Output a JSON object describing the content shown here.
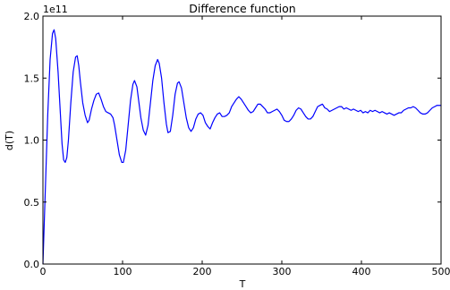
{
  "chart_data": {
    "type": "line",
    "title": "Difference function",
    "xlabel": "T",
    "ylabel": "d(T)",
    "y_scale_label": "1e11",
    "xlim": [
      0,
      500
    ],
    "ylim": [
      0.0,
      2.0
    ],
    "x_ticks": [
      "0",
      "100",
      "200",
      "300",
      "400",
      "500"
    ],
    "y_ticks": [
      "0.0",
      "0.5",
      "1.0",
      "1.5",
      "2.0"
    ],
    "grid": false,
    "legend": "none",
    "series": [
      {
        "color": "#0000ff",
        "points": [
          [
            0,
            0.0
          ],
          [
            3,
            0.6
          ],
          [
            6,
            1.2
          ],
          [
            9,
            1.65
          ],
          [
            12,
            1.86
          ],
          [
            14,
            1.89
          ],
          [
            16,
            1.82
          ],
          [
            19,
            1.55
          ],
          [
            22,
            1.2
          ],
          [
            24,
            0.97
          ],
          [
            26,
            0.84
          ],
          [
            28,
            0.82
          ],
          [
            30,
            0.86
          ],
          [
            32,
            1.0
          ],
          [
            35,
            1.3
          ],
          [
            38,
            1.55
          ],
          [
            41,
            1.67
          ],
          [
            43,
            1.68
          ],
          [
            45,
            1.6
          ],
          [
            47,
            1.47
          ],
          [
            50,
            1.3
          ],
          [
            53,
            1.2
          ],
          [
            56,
            1.14
          ],
          [
            58,
            1.16
          ],
          [
            61,
            1.25
          ],
          [
            64,
            1.32
          ],
          [
            67,
            1.37
          ],
          [
            70,
            1.38
          ],
          [
            73,
            1.33
          ],
          [
            76,
            1.27
          ],
          [
            79,
            1.23
          ],
          [
            82,
            1.22
          ],
          [
            85,
            1.21
          ],
          [
            88,
            1.18
          ],
          [
            90,
            1.12
          ],
          [
            93,
            1.0
          ],
          [
            96,
            0.88
          ],
          [
            99,
            0.82
          ],
          [
            101,
            0.82
          ],
          [
            104,
            0.92
          ],
          [
            107,
            1.12
          ],
          [
            110,
            1.32
          ],
          [
            113,
            1.45
          ],
          [
            115,
            1.48
          ],
          [
            118,
            1.43
          ],
          [
            120,
            1.33
          ],
          [
            123,
            1.18
          ],
          [
            126,
            1.08
          ],
          [
            129,
            1.04
          ],
          [
            132,
            1.12
          ],
          [
            135,
            1.3
          ],
          [
            138,
            1.48
          ],
          [
            141,
            1.6
          ],
          [
            144,
            1.65
          ],
          [
            146,
            1.62
          ],
          [
            149,
            1.5
          ],
          [
            152,
            1.3
          ],
          [
            155,
            1.13
          ],
          [
            157,
            1.06
          ],
          [
            160,
            1.07
          ],
          [
            163,
            1.2
          ],
          [
            166,
            1.37
          ],
          [
            169,
            1.46
          ],
          [
            171,
            1.47
          ],
          [
            174,
            1.42
          ],
          [
            177,
            1.3
          ],
          [
            180,
            1.18
          ],
          [
            183,
            1.1
          ],
          [
            186,
            1.07
          ],
          [
            189,
            1.1
          ],
          [
            192,
            1.17
          ],
          [
            195,
            1.21
          ],
          [
            198,
            1.22
          ],
          [
            201,
            1.2
          ],
          [
            204,
            1.14
          ],
          [
            207,
            1.11
          ],
          [
            210,
            1.09
          ],
          [
            213,
            1.14
          ],
          [
            216,
            1.18
          ],
          [
            219,
            1.21
          ],
          [
            222,
            1.22
          ],
          [
            225,
            1.19
          ],
          [
            228,
            1.19
          ],
          [
            231,
            1.2
          ],
          [
            234,
            1.22
          ],
          [
            237,
            1.27
          ],
          [
            240,
            1.3
          ],
          [
            243,
            1.33
          ],
          [
            246,
            1.35
          ],
          [
            249,
            1.33
          ],
          [
            252,
            1.3
          ],
          [
            255,
            1.27
          ],
          [
            258,
            1.24
          ],
          [
            261,
            1.22
          ],
          [
            264,
            1.23
          ],
          [
            267,
            1.26
          ],
          [
            270,
            1.29
          ],
          [
            273,
            1.29
          ],
          [
            276,
            1.27
          ],
          [
            279,
            1.25
          ],
          [
            282,
            1.22
          ],
          [
            285,
            1.22
          ],
          [
            288,
            1.23
          ],
          [
            291,
            1.24
          ],
          [
            294,
            1.25
          ],
          [
            297,
            1.23
          ],
          [
            300,
            1.2
          ],
          [
            303,
            1.16
          ],
          [
            306,
            1.15
          ],
          [
            309,
            1.15
          ],
          [
            312,
            1.17
          ],
          [
            315,
            1.2
          ],
          [
            318,
            1.24
          ],
          [
            321,
            1.26
          ],
          [
            324,
            1.25
          ],
          [
            327,
            1.22
          ],
          [
            330,
            1.19
          ],
          [
            333,
            1.17
          ],
          [
            336,
            1.17
          ],
          [
            339,
            1.19
          ],
          [
            342,
            1.23
          ],
          [
            345,
            1.27
          ],
          [
            348,
            1.28
          ],
          [
            351,
            1.29
          ],
          [
            354,
            1.26
          ],
          [
            357,
            1.25
          ],
          [
            360,
            1.23
          ],
          [
            363,
            1.24
          ],
          [
            366,
            1.25
          ],
          [
            369,
            1.26
          ],
          [
            372,
            1.27
          ],
          [
            375,
            1.27
          ],
          [
            378,
            1.25
          ],
          [
            381,
            1.26
          ],
          [
            384,
            1.25
          ],
          [
            387,
            1.24
          ],
          [
            390,
            1.25
          ],
          [
            393,
            1.24
          ],
          [
            396,
            1.23
          ],
          [
            399,
            1.24
          ],
          [
            402,
            1.22
          ],
          [
            405,
            1.23
          ],
          [
            408,
            1.22
          ],
          [
            411,
            1.24
          ],
          [
            414,
            1.23
          ],
          [
            417,
            1.24
          ],
          [
            420,
            1.23
          ],
          [
            423,
            1.22
          ],
          [
            426,
            1.23
          ],
          [
            429,
            1.22
          ],
          [
            432,
            1.21
          ],
          [
            435,
            1.22
          ],
          [
            438,
            1.21
          ],
          [
            441,
            1.2
          ],
          [
            444,
            1.21
          ],
          [
            447,
            1.22
          ],
          [
            450,
            1.22
          ],
          [
            453,
            1.24
          ],
          [
            456,
            1.25
          ],
          [
            459,
            1.26
          ],
          [
            462,
            1.26
          ],
          [
            465,
            1.27
          ],
          [
            468,
            1.26
          ],
          [
            471,
            1.24
          ],
          [
            474,
            1.22
          ],
          [
            477,
            1.21
          ],
          [
            480,
            1.21
          ],
          [
            483,
            1.22
          ],
          [
            486,
            1.24
          ],
          [
            489,
            1.26
          ],
          [
            492,
            1.27
          ],
          [
            495,
            1.28
          ],
          [
            498,
            1.28
          ],
          [
            500,
            1.28
          ]
        ]
      }
    ]
  }
}
